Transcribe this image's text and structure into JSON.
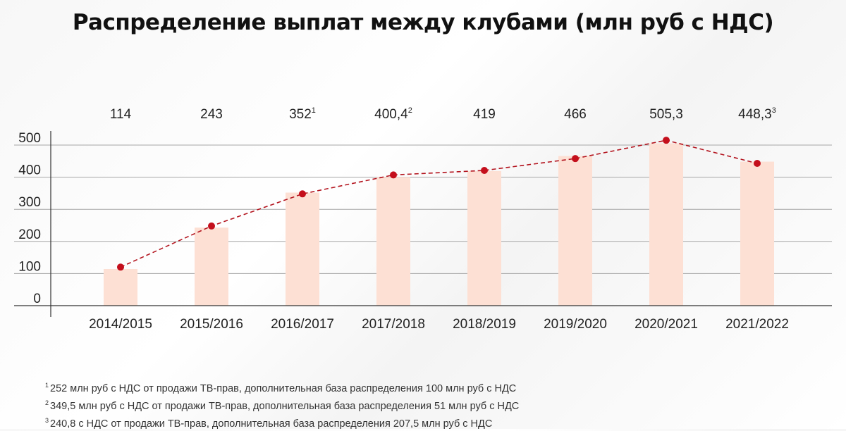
{
  "chart_data": {
    "type": "bar",
    "title": "Распределение выплат между клубами (млн руб с НДС)",
    "categories": [
      "2014/2015",
      "2015/2016",
      "2016/2017",
      "2017/2018",
      "2018/2019",
      "2019/2020",
      "2020/2021",
      "2021/2022"
    ],
    "values": [
      114,
      243,
      352,
      400.4,
      419,
      466,
      505.3,
      448.3
    ],
    "value_labels": [
      "114",
      "243",
      "352",
      "400,4",
      "419",
      "466",
      "505,3",
      "448,3"
    ],
    "value_label_marks": [
      "",
      "",
      "1",
      "2",
      "",
      "",
      "",
      "3"
    ],
    "line_values": [
      120,
      248,
      348,
      407,
      421,
      458,
      515,
      443
    ],
    "yticks": [
      0,
      100,
      200,
      300,
      400,
      500
    ],
    "ylim": [
      0,
      550
    ],
    "grid": true,
    "colors": {
      "bar": "#fde0d4",
      "line": "#b3141e",
      "marker": "#c40f1c",
      "grid": "#a6a6a6"
    }
  },
  "footnotes": [
    {
      "mark": "1",
      "text": "252 млн руб с НДС от продажи ТВ-прав, дополнительная база распределения 100 млн руб с НДС"
    },
    {
      "mark": "2",
      "text": "349,5 млн руб с НДС от продажи ТВ-прав, дополнительная база распределения 51 млн руб с НДС"
    },
    {
      "mark": "3",
      "text": "240,8 с НДС от продажи ТВ-прав, дополнительная база распределения 207,5 млн руб с НДС"
    }
  ]
}
